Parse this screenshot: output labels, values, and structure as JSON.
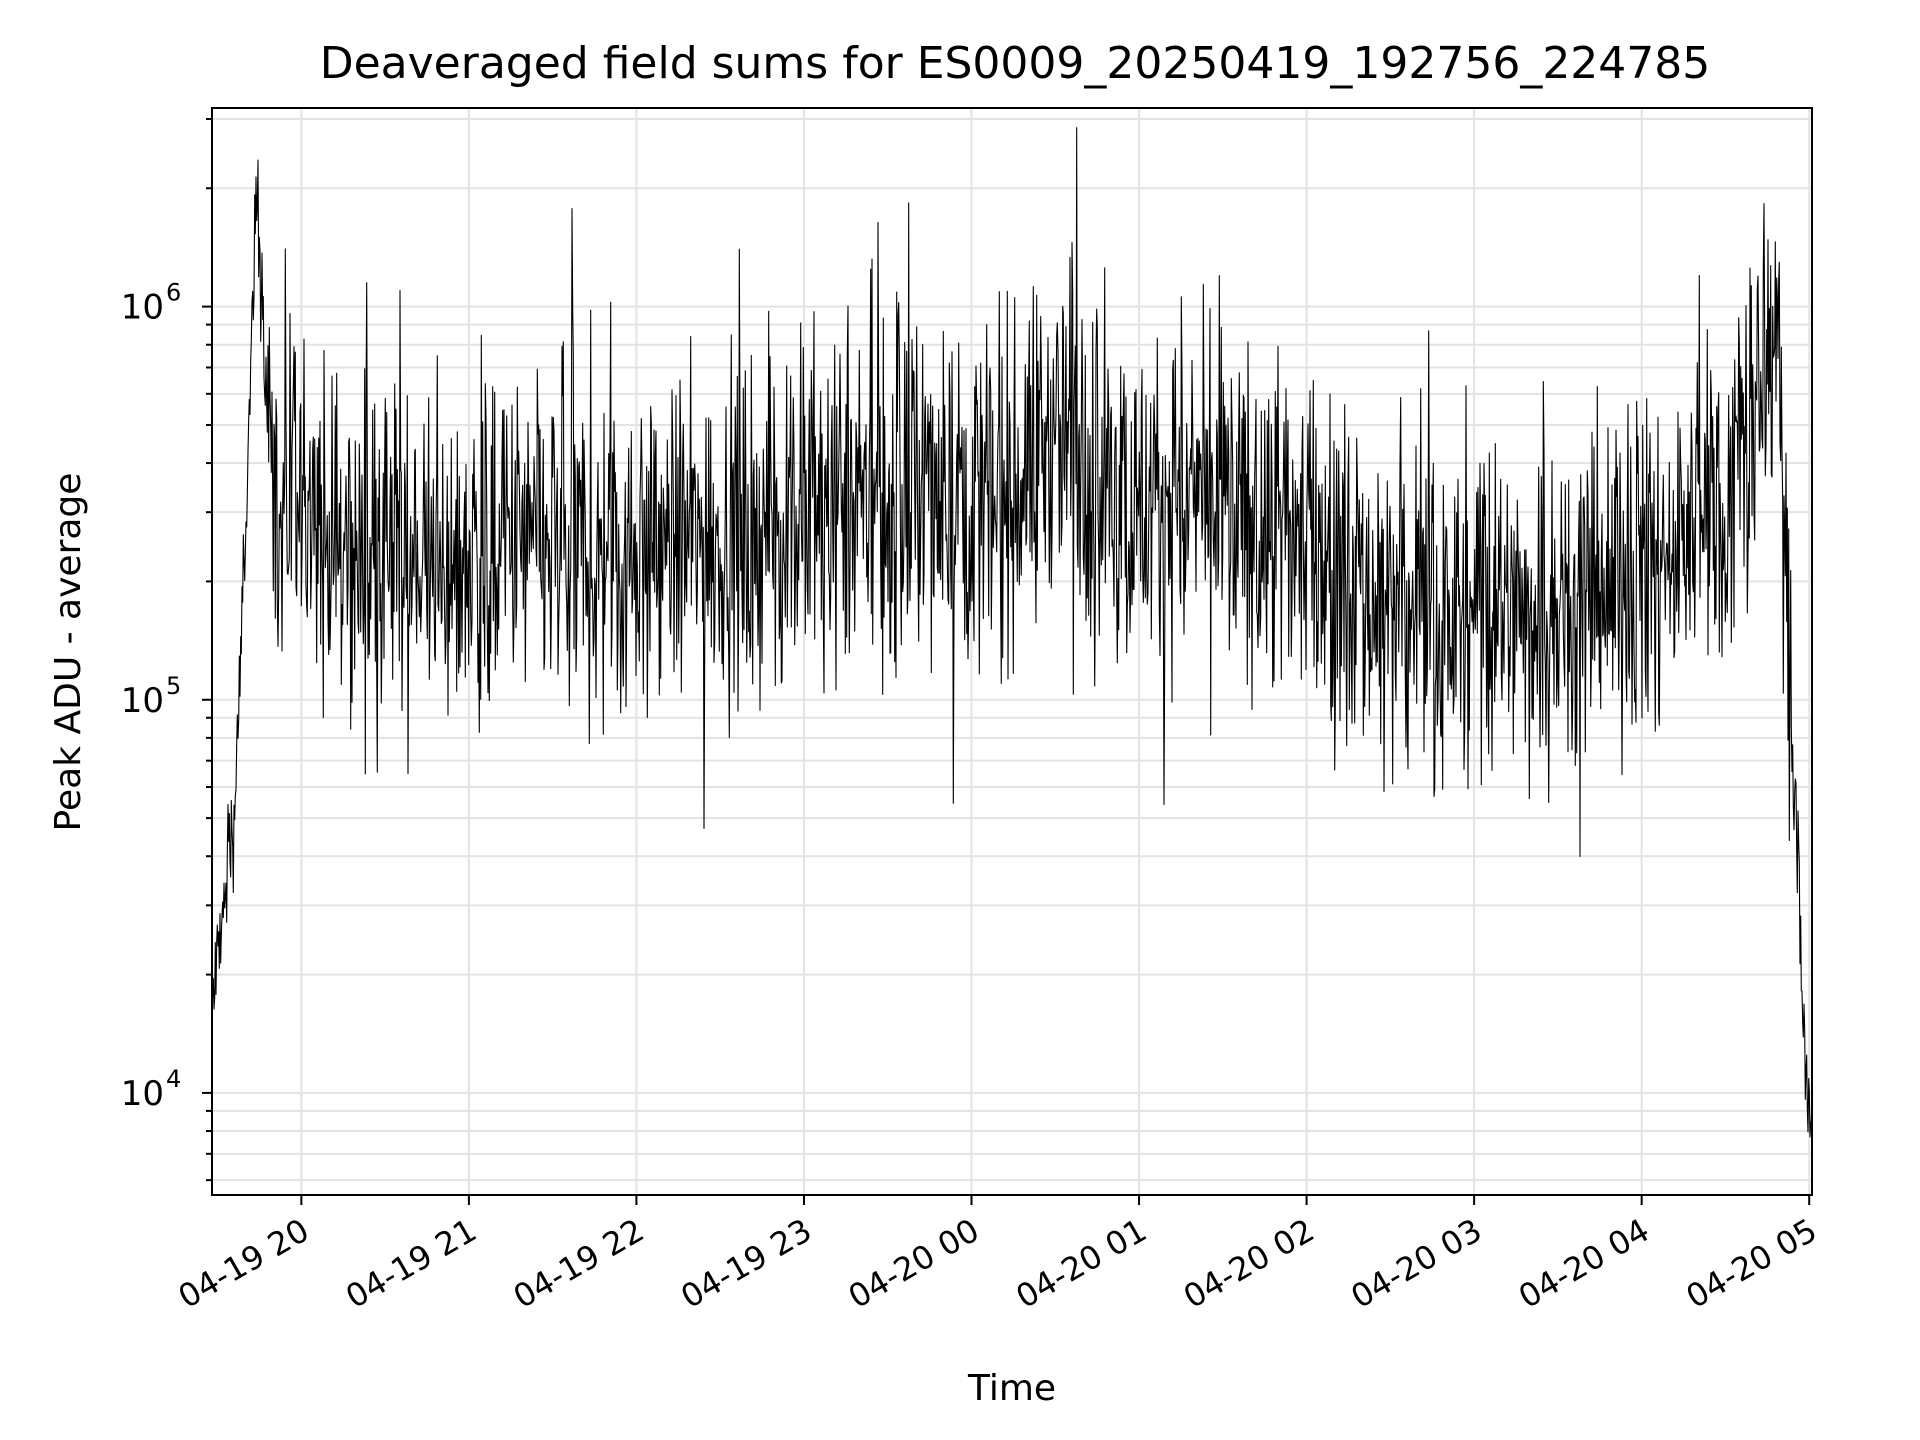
{
  "chart_data": {
    "type": "line",
    "title": "Deaveraged field sums for ES0009_20250419_192756_224785",
    "xlabel": "Time",
    "ylabel": "Peak ADU - average",
    "xscale": "time",
    "yscale": "log",
    "xlim": [
      "2025-04-19 19:28",
      "2025-04-20 05:01"
    ],
    "ylim": [
      5500,
      3200000
    ],
    "grid": true,
    "x_ticks": [
      "04-19 20",
      "04-19 21",
      "04-19 22",
      "04-19 23",
      "04-20 00",
      "04-20 01",
      "04-20 02",
      "04-20 03",
      "04-20 04",
      "04-20 05"
    ],
    "y_ticks": [
      {
        "base": "10",
        "exp": "4",
        "value": 10000
      },
      {
        "base": "10",
        "exp": "5",
        "value": 100000
      },
      {
        "base": "10",
        "exp": "6",
        "value": 1000000
      }
    ],
    "series": [
      {
        "color": "#000000",
        "x": [
          "2025-04-19 19:28",
          "2025-04-19 19:32",
          "2025-04-19 19:36",
          "2025-04-19 19:40",
          "2025-04-19 19:44",
          "2025-04-19 19:46",
          "2025-04-19 19:48",
          "2025-04-19 19:50",
          "2025-04-19 19:53",
          "2025-04-19 19:56",
          "2025-04-19 20:00",
          "2025-04-19 20:10",
          "2025-04-19 20:20",
          "2025-04-19 20:30",
          "2025-04-19 20:40",
          "2025-04-19 20:50",
          "2025-04-19 21:00",
          "2025-04-19 21:15",
          "2025-04-19 21:30",
          "2025-04-19 21:45",
          "2025-04-19 22:00",
          "2025-04-19 22:15",
          "2025-04-19 22:30",
          "2025-04-19 22:45",
          "2025-04-19 23:00",
          "2025-04-19 23:15",
          "2025-04-19 23:30",
          "2025-04-19 23:45",
          "2025-04-20 00:00",
          "2025-04-20 00:15",
          "2025-04-20 00:25",
          "2025-04-20 00:35",
          "2025-04-20 00:45",
          "2025-04-20 01:00",
          "2025-04-20 01:15",
          "2025-04-20 01:30",
          "2025-04-20 01:45",
          "2025-04-20 02:00",
          "2025-04-20 02:15",
          "2025-04-20 02:30",
          "2025-04-20 02:45",
          "2025-04-20 03:00",
          "2025-04-20 03:15",
          "2025-04-20 03:30",
          "2025-04-20 03:45",
          "2025-04-20 04:00",
          "2025-04-20 04:15",
          "2025-04-20 04:30",
          "2025-04-20 04:40",
          "2025-04-20 04:46",
          "2025-04-20 04:50",
          "2025-04-20 04:53",
          "2025-04-20 04:56",
          "2025-04-20 04:58",
          "2025-04-20 05:00"
        ],
        "values": [
          16000,
          30000,
          50000,
          250000,
          2000000,
          900000,
          500000,
          350000,
          300000,
          300000,
          280000,
          250000,
          230000,
          220000,
          230000,
          220000,
          230000,
          250000,
          240000,
          230000,
          240000,
          250000,
          260000,
          270000,
          280000,
          300000,
          320000,
          340000,
          330000,
          350000,
          450000,
          480000,
          350000,
          300000,
          330000,
          300000,
          260000,
          270000,
          200000,
          170000,
          160000,
          160000,
          170000,
          180000,
          190000,
          200000,
          260000,
          350000,
          500000,
          900000,
          500000,
          100000,
          40000,
          15000,
          8000
        ]
      }
    ]
  }
}
